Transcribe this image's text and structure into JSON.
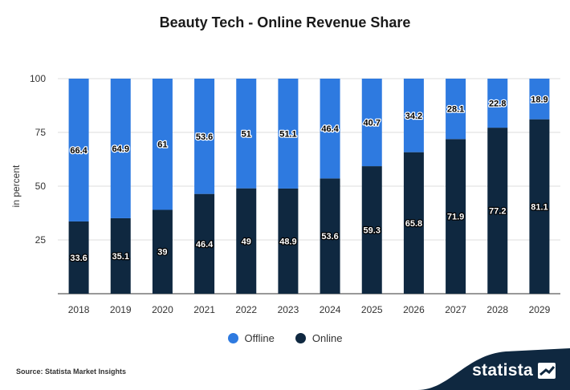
{
  "title": "Beauty Tech - Online Revenue Share",
  "source": "Source: Statista Market Insights",
  "brand": "statista",
  "colors": {
    "offline": "#2e7ae0",
    "online": "#0f2840",
    "brand_bg": "#0f2840"
  },
  "chart_data": {
    "type": "bar",
    "stacked": true,
    "categories": [
      "2018",
      "2019",
      "2020",
      "2021",
      "2022",
      "2023",
      "2024",
      "2025",
      "2026",
      "2027",
      "2028",
      "2029"
    ],
    "series": [
      {
        "name": "Online",
        "values": [
          33.6,
          35.1,
          39,
          46.4,
          49,
          48.9,
          53.6,
          59.3,
          65.8,
          71.9,
          77.2,
          81.1
        ]
      },
      {
        "name": "Offline",
        "values": [
          66.4,
          64.9,
          61,
          53.6,
          51,
          51.1,
          46.4,
          40.7,
          34.2,
          28.1,
          22.8,
          18.9
        ]
      }
    ],
    "ylabel": "in percent",
    "ylim": [
      0,
      100
    ],
    "yticks": [
      25,
      50,
      75,
      100
    ],
    "grid": true,
    "legend": "bottom"
  },
  "legend": {
    "offline": "Offline",
    "online": "Online"
  }
}
